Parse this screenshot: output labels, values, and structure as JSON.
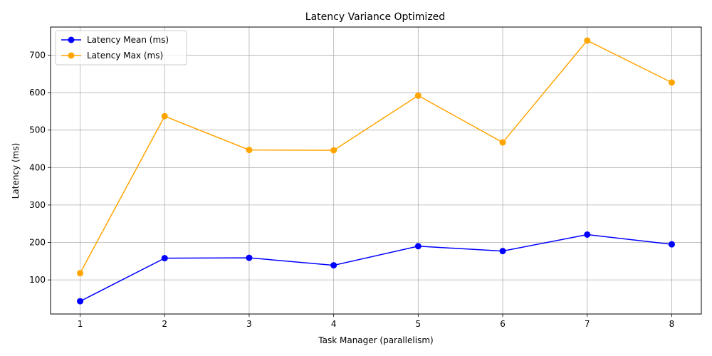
{
  "chart_data": {
    "type": "line",
    "title": "Latency Variance Optimized",
    "xlabel": "Task Manager (parallelism)",
    "ylabel": "Latency (ms)",
    "x": [
      1,
      2,
      3,
      4,
      5,
      6,
      7,
      8
    ],
    "x_ticks": [
      "1",
      "2",
      "3",
      "4",
      "5",
      "6",
      "7",
      "8"
    ],
    "y_ticks": [
      "100",
      "200",
      "300",
      "400",
      "500",
      "600",
      "700"
    ],
    "xlim": [
      0.65,
      8.35
    ],
    "ylim": [
      9,
      775
    ],
    "grid": true,
    "legend_position": "top-left",
    "series": [
      {
        "name": "Latency Mean (ms)",
        "color": "#0000ff",
        "values": [
          43,
          158,
          159,
          139,
          190,
          177,
          221,
          195
        ]
      },
      {
        "name": "Latency Max (ms)",
        "color": "#ffa500",
        "values": [
          118,
          537,
          447,
          446,
          592,
          467,
          739,
          627
        ]
      }
    ]
  }
}
